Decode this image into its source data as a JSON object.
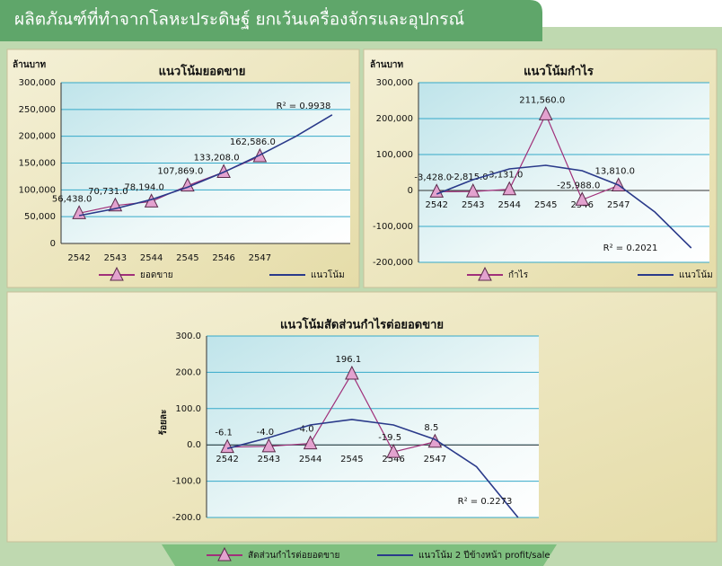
{
  "header": {
    "title": "ผลิตภัณฑ์ที่ทำจากโลหะประดิษฐ์ ยกเว้นเครื่องจักรและอุปกรณ์"
  },
  "chart_data": [
    {
      "type": "line",
      "title": "แนวโน้มยอดขาย",
      "y_label": "ล้านบาท",
      "categories": [
        "2542",
        "2543",
        "2544",
        "2545",
        "2546",
        "2547",
        null,
        null
      ],
      "series": [
        {
          "name": "ยอดขาย",
          "color": "#a0307a",
          "marker": "triangle",
          "values": [
            56438,
            70731,
            78194,
            107869,
            133208,
            162586,
            null,
            null
          ],
          "value_labels": [
            "56,438.0",
            "70,731.0",
            "78,194.0",
            "107,869.0",
            "133,208.0",
            "162,586.0",
            null,
            null
          ]
        },
        {
          "name": "แนวโน้ม",
          "color": "#2a3a8a",
          "values": [
            52000,
            65000,
            82000,
            105000,
            133000,
            165000,
            200000,
            240000
          ]
        }
      ],
      "ylim": [
        0,
        300000
      ],
      "yticks": [
        0,
        {
          "value": 50000,
          "label": "50,000"
        },
        {
          "value": 100000,
          "label": "100,000"
        },
        {
          "value": 150000,
          "label": "150,000"
        },
        {
          "value": 200000,
          "label": "200,000"
        },
        {
          "value": 250000,
          "label": "250,000"
        },
        {
          "value": 300000,
          "label": "300,000"
        }
      ],
      "grid": true,
      "annotation": "R² = 0.9938"
    },
    {
      "type": "line",
      "title": "แนวโน้มกำไร",
      "y_label": "ล้านบาท",
      "categories": [
        "2542",
        "2543",
        "2544",
        "2545",
        "2546",
        "2547",
        null,
        null
      ],
      "series": [
        {
          "name": "กำไร",
          "color": "#a0307a",
          "marker": "triangle",
          "values": [
            -3428,
            -2815,
            3131,
            211560,
            -25988,
            13810,
            null,
            null
          ],
          "value_labels": [
            "-3,428.0",
            "-2,815.0",
            "3,131.0",
            "211,560.0",
            "-25,988.0",
            "13,810.0",
            null,
            null
          ]
        },
        {
          "name": "แนวโน้ม",
          "color": "#2a3a8a",
          "values": [
            -10000,
            30000,
            60000,
            70000,
            55000,
            15000,
            -60000,
            -160000
          ]
        }
      ],
      "ylim": [
        -200000,
        300000
      ],
      "yticks": [
        {
          "value": -200000,
          "label": "-200,000"
        },
        {
          "value": -100000,
          "label": "-100,000"
        },
        0,
        {
          "value": 100000,
          "label": "100,000"
        },
        {
          "value": 200000,
          "label": "200,000"
        },
        {
          "value": 300000,
          "label": "300,000"
        }
      ],
      "grid": true,
      "annotation": "R² = 0.2021"
    },
    {
      "type": "line",
      "title": "แนวโน้มสัดส่วนกำไรต่อยอดขาย",
      "y_label": "ร้อยละ",
      "categories": [
        "2542",
        "2543",
        "2544",
        "2545",
        "2546",
        "2547",
        null,
        null
      ],
      "series": [
        {
          "name": "สัดส่วนกำไรต่อยอดขาย",
          "color": "#a0307a",
          "marker": "triangle",
          "values": [
            -6.1,
            -4.0,
            4.0,
            196.1,
            -19.5,
            8.5,
            null,
            null
          ],
          "value_labels": [
            "-6.1",
            "-4.0",
            "4.0",
            "196.1",
            "-19.5",
            "8.5",
            null,
            null
          ]
        },
        {
          "name": "แนวโน้ม 2 ปีข้างหน้า profit/sale",
          "color": "#2a3a8a",
          "values": [
            -10,
            20,
            55,
            70,
            55,
            15,
            -60,
            -200
          ]
        }
      ],
      "ylim": [
        -200,
        300
      ],
      "yticks": [
        {
          "value": -200,
          "label": "-200.0"
        },
        {
          "value": -100,
          "label": "-100.0"
        },
        {
          "value": 0,
          "label": "0.0"
        },
        {
          "value": 100,
          "label": "100.0"
        },
        {
          "value": 200,
          "label": "200.0"
        },
        {
          "value": 300,
          "label": "300.0"
        }
      ],
      "grid": true,
      "annotation": "R² = 0.2273"
    }
  ]
}
